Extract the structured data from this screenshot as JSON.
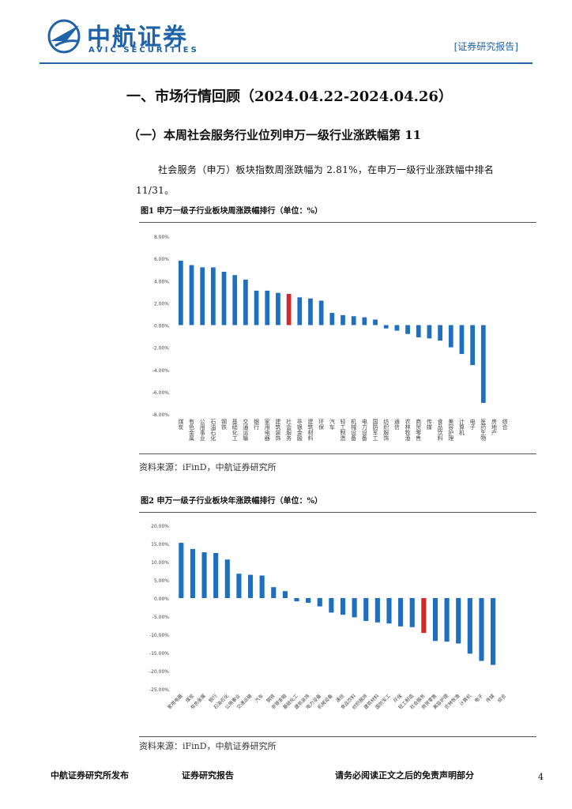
{
  "header": {
    "logo_cn": "中航证券",
    "logo_en": "AVIC SECURITIES",
    "tag": "[证券研究报告]"
  },
  "section_title": "一、市场行情回顾（2024.04.22-2024.04.26）",
  "subsection_title": "（一）本周社会服务行业位列申万一级行业涨跌幅第 11",
  "paragraph": "社会服务（申万）板块指数周涨跌幅为 2.81%，在申万一级行业涨跌幅中排名 11/31。",
  "figure1": {
    "caption": "图1  申万一级子行业板块周涨跌幅排行（单位：%）",
    "source": "资料来源：iFinD，中航证券研究所"
  },
  "figure2": {
    "caption": "图2  申万一级子行业板块年涨跌幅排行（单位：%）",
    "source": "资料来源：iFinD，中航证券研究所"
  },
  "chart_data": [
    {
      "type": "bar",
      "title": "",
      "ylim": [
        -8,
        8
      ],
      "yticks": [
        "8.00%",
        "6.00%",
        "4.00%",
        "2.00%",
        "0.00%",
        "-2.00%",
        "-4.00%",
        "-6.00%",
        "-8.00%"
      ],
      "categories": [
        "煤炭",
        "有色金属",
        "公用事业",
        "石油石化",
        "钢铁",
        "基础化工",
        "交通运输",
        "银行",
        "家用电器",
        "建筑装饰",
        "社会服务",
        "非银金融",
        "建筑材料",
        "环保",
        "汽车",
        "轻工制造",
        "机械设备",
        "电力设备",
        "国防军工",
        "纺织服饰",
        "通信",
        "农林牧渔",
        "商贸零售",
        "传媒",
        "食品饮料",
        "美容护理",
        "计算机",
        "电子",
        "医药生物",
        "房地产",
        "综合"
      ],
      "values": [
        5.8,
        5.4,
        5.2,
        5.2,
        4.8,
        4.5,
        4.1,
        3.1,
        3.1,
        2.9,
        2.81,
        2.5,
        2.4,
        2.2,
        1.1,
        0.9,
        0.8,
        0.7,
        0.5,
        -0.3,
        -0.5,
        -0.8,
        -1.1,
        -1.2,
        -1.4,
        -2.0,
        -2.6,
        -3.6,
        -7.0,
        0,
        0
      ],
      "highlight": "社会服务",
      "highlight_color": "#d02a2a",
      "bar_color": "#1f6fbf"
    },
    {
      "type": "bar",
      "title": "",
      "ylim": [
        -25,
        20
      ],
      "yticks": [
        "20.00%",
        "15.00%",
        "10.00%",
        "5.00%",
        "0.00%",
        "-5.00%",
        "-10.00%",
        "-15.00%",
        "-20.00%",
        "-25.00%"
      ],
      "categories": [
        "家用电器",
        "煤炭",
        "有色金属",
        "银行",
        "石油石化",
        "公用事业",
        "交通运输",
        "汽车",
        "钢铁",
        "非银金融",
        "基础化工",
        "建筑装饰",
        "电力设备",
        "机械设备",
        "通信",
        "食品饮料",
        "纺织服饰",
        "建筑材料",
        "国防军工",
        "环保",
        "轻工制造",
        "社会服务",
        "商贸零售",
        "美容护理",
        "农林牧渔",
        "计算机",
        "电子",
        "传媒",
        "综合"
      ],
      "values": [
        15.2,
        13.5,
        12.6,
        12.4,
        10.6,
        6.7,
        6.4,
        6.2,
        3.0,
        1.9,
        -0.9,
        -1.3,
        -2.3,
        -4.0,
        -4.6,
        -5.3,
        -6.3,
        -6.7,
        -7.0,
        -7.8,
        -8.0,
        -9.6,
        -11.8,
        -12.0,
        -12.5,
        -15.3,
        -17.3,
        -18.4,
        0
      ],
      "highlight": "社会服务",
      "highlight_color": "#d02a2a",
      "bar_color": "#1f6fbf"
    }
  ],
  "footer": {
    "left": "中航证券研究所发布",
    "middle": "证券研究报告",
    "right": "请务必阅读正文之后的免责声明部分",
    "page": "4"
  }
}
